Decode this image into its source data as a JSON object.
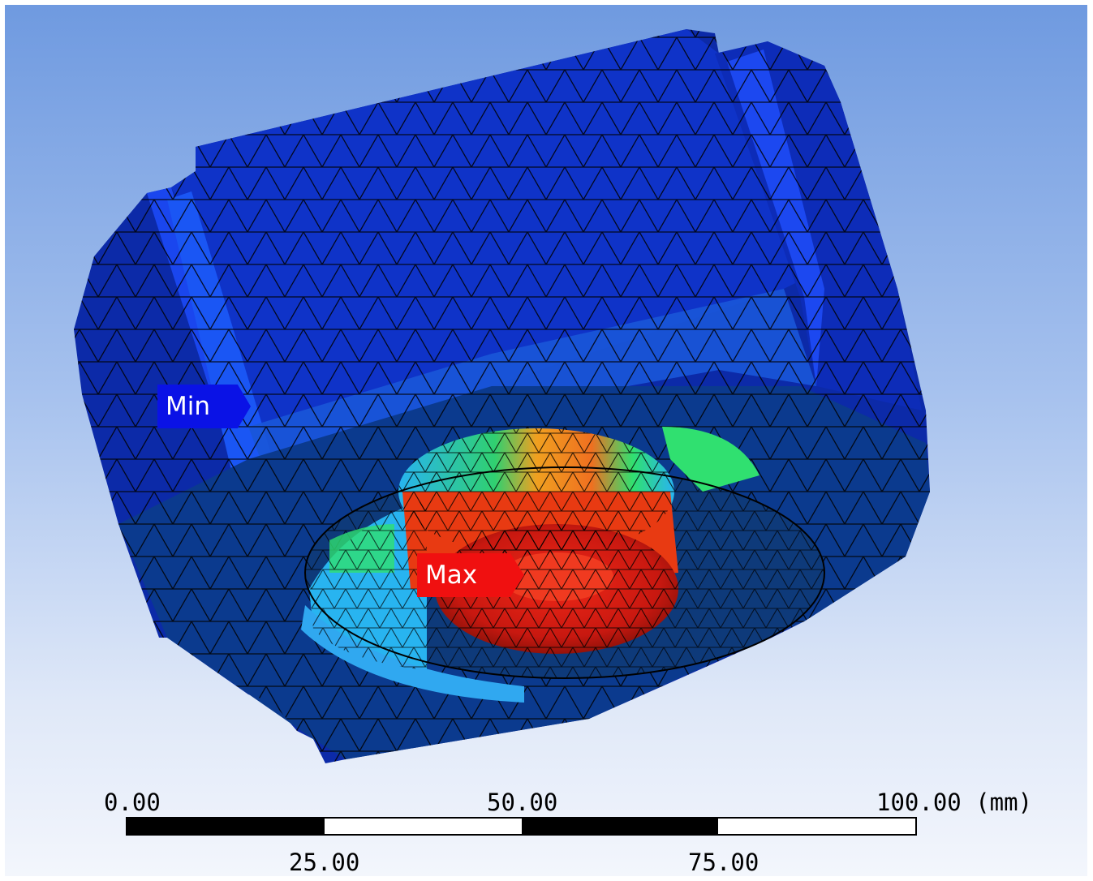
{
  "viewport": {
    "background_top": "#6f9ae0",
    "background_bottom": "#f3f6fc"
  },
  "model": {
    "description_icon": "fea-mesh-model",
    "colors": {
      "outer": "#0c2aa8",
      "top_face": "#1038d8",
      "slot_face": "#1844f0",
      "inner_ring": "#1e90e8",
      "low": "#28b4f0",
      "mid": "#30e070",
      "high": "#f0a020",
      "max": "#e82010",
      "mesh_line": "#000000"
    }
  },
  "probes": {
    "min_label": "Min",
    "max_label": "Max"
  },
  "scale": {
    "tick_0": "0.00",
    "tick_50": "50.00",
    "tick_100": "100.00 (mm)",
    "tick_25": "25.00",
    "tick_75": "75.00"
  }
}
